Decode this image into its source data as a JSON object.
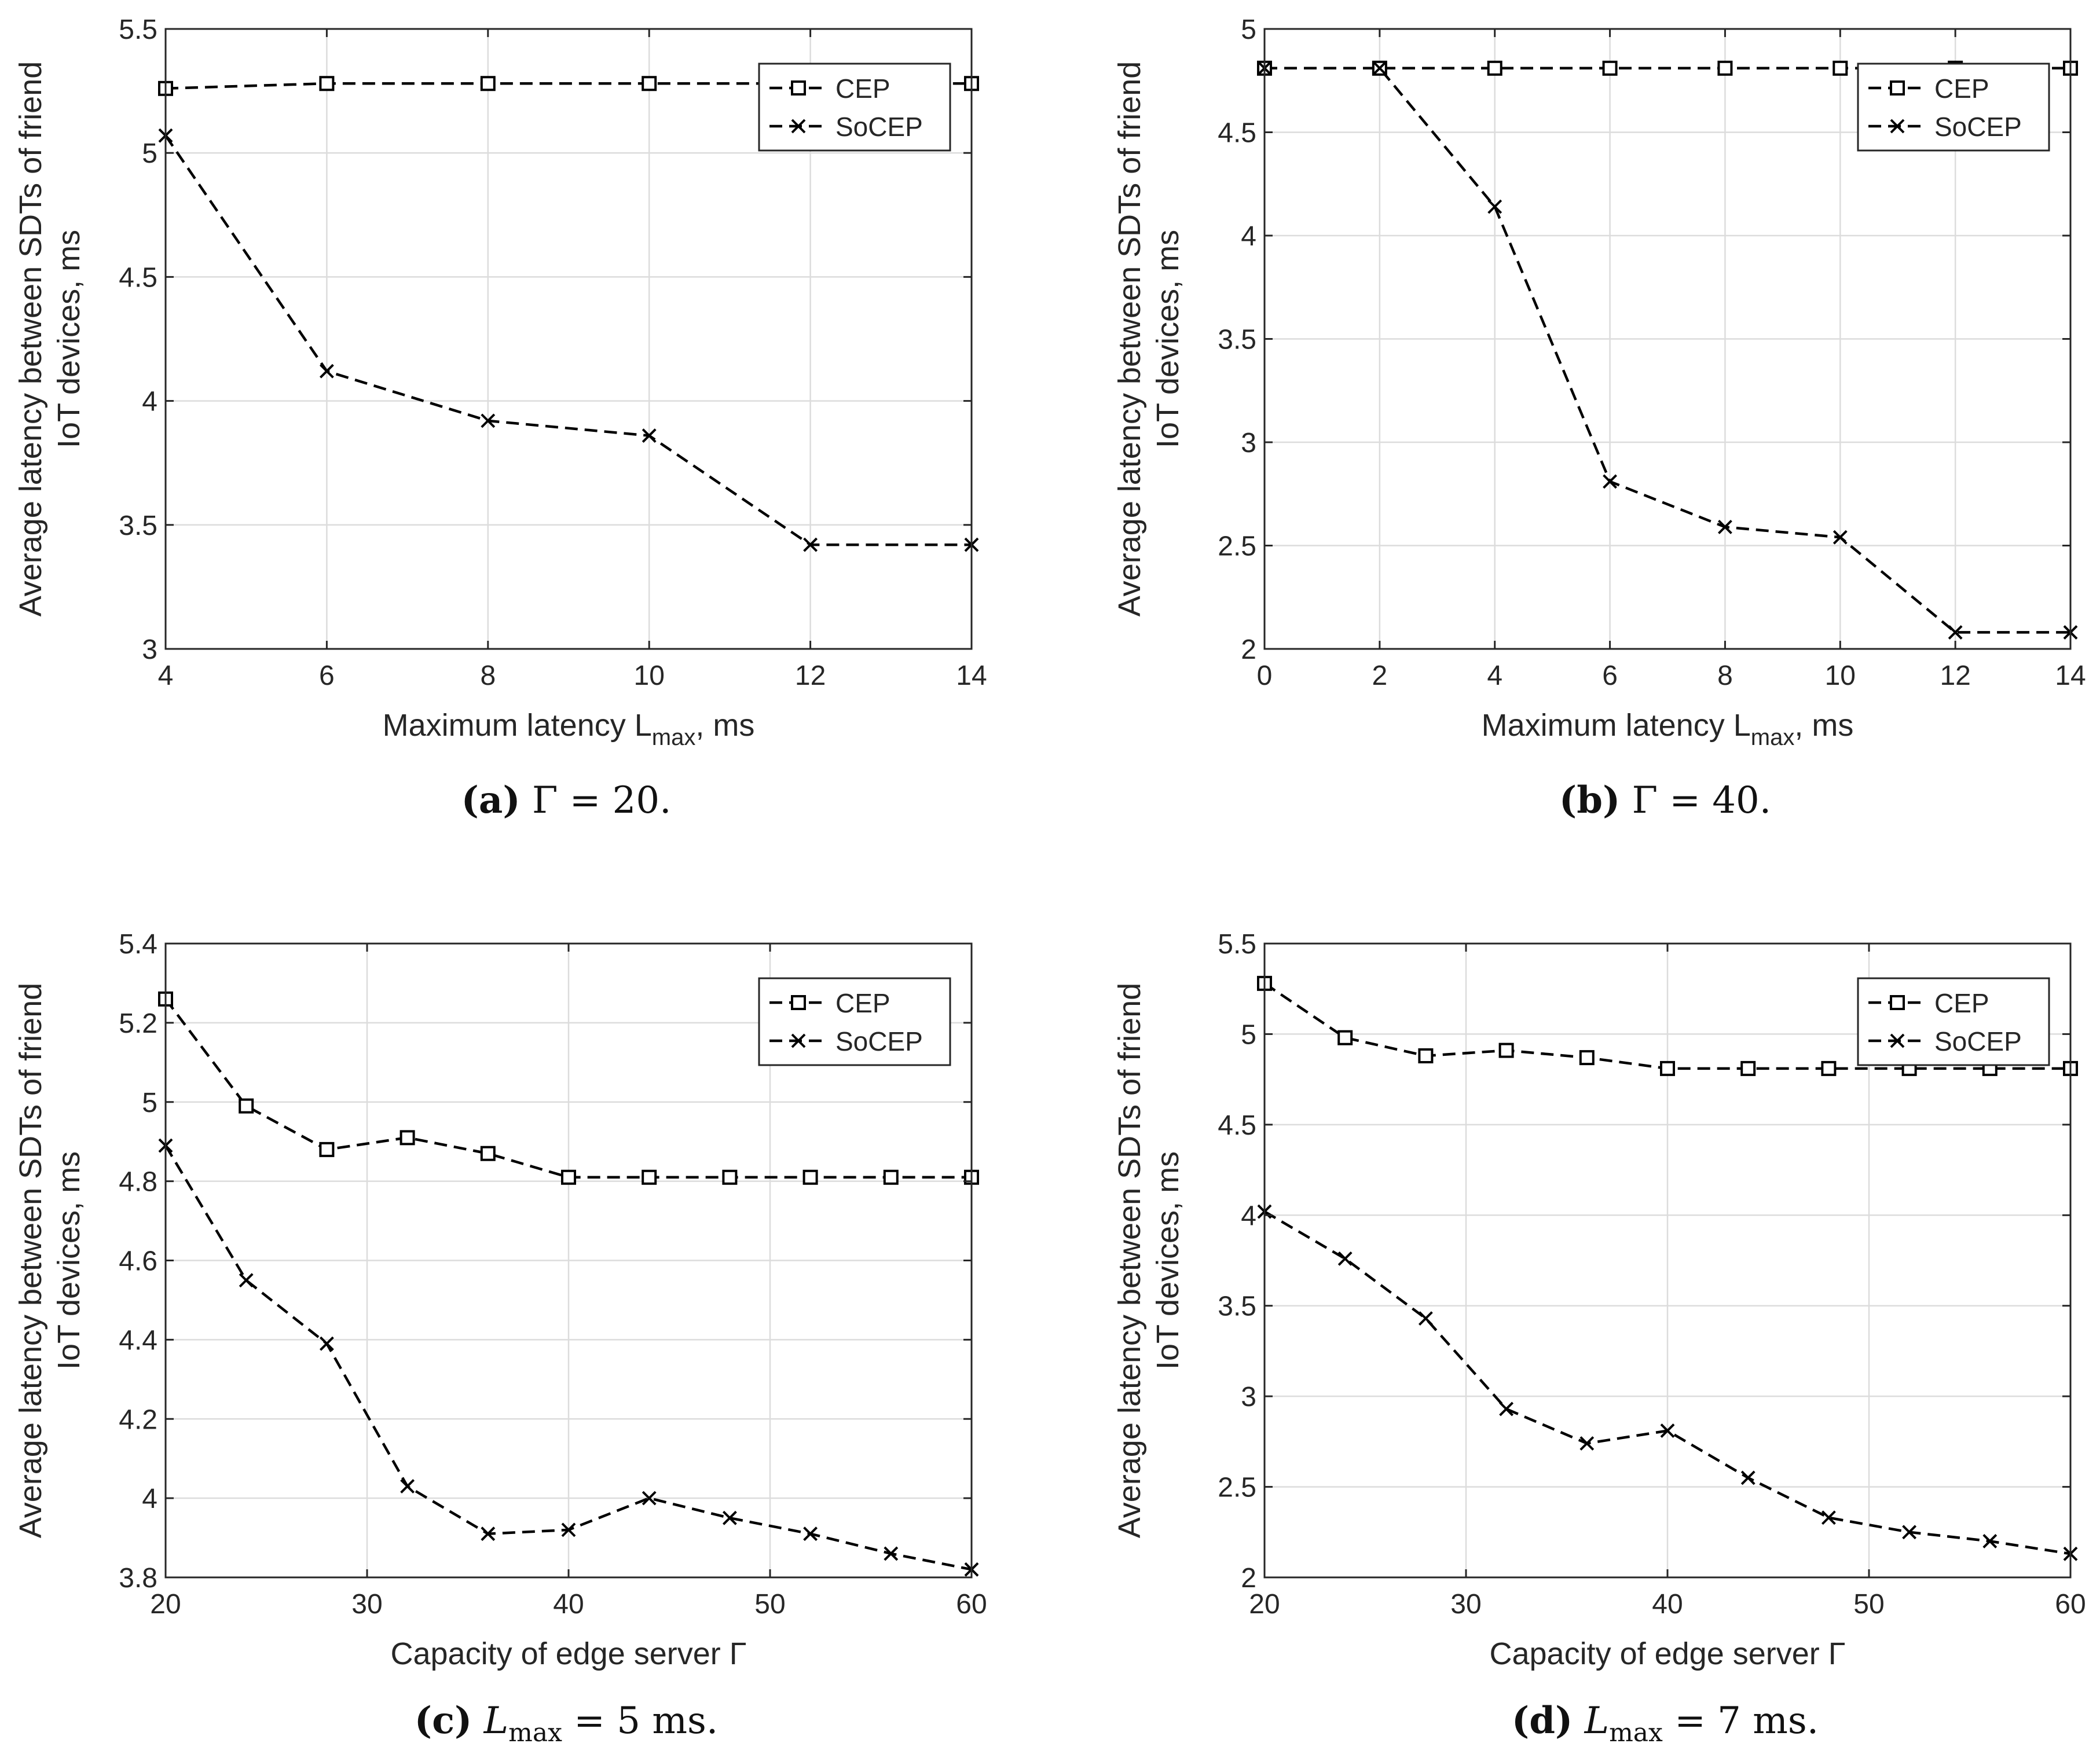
{
  "figure": {
    "captions": [
      {
        "label": "(a)",
        "text": "Γ = 20."
      },
      {
        "label": "(b)",
        "text": "Γ = 40."
      },
      {
        "label": "(c)",
        "math": "L",
        "sub": "max",
        "text": " = 5 ms."
      },
      {
        "label": "(d)",
        "math": "L",
        "sub": "max",
        "text": " = 7 ms."
      }
    ]
  },
  "chart_data": [
    {
      "id": "a",
      "type": "line",
      "title": "",
      "xlabel": "Maximum latency L",
      "xlabel_sub": "max",
      "xlabel_suffix": ", ms",
      "ylabel": [
        "Average latency between SDTs of friend",
        "IoT devices, ms"
      ],
      "xlim": [
        4,
        14
      ],
      "ylim": [
        3,
        5.5
      ],
      "xticks": [
        4,
        6,
        8,
        10,
        12,
        14
      ],
      "yticks": [
        3,
        3.5,
        4,
        4.5,
        5,
        5.5
      ],
      "ytick_labels": [
        "3",
        "3.5",
        "4",
        "4.5",
        "5",
        "5.5"
      ],
      "grid": true,
      "legend": "top-right",
      "x": [
        4,
        6,
        8,
        10,
        12,
        14
      ],
      "series": [
        {
          "name": "CEP",
          "marker": "square",
          "values": [
            5.26,
            5.28,
            5.28,
            5.28,
            5.28,
            5.28
          ]
        },
        {
          "name": "SoCEP",
          "marker": "x",
          "values": [
            5.07,
            4.12,
            3.92,
            3.86,
            3.42,
            3.42
          ]
        }
      ]
    },
    {
      "id": "b",
      "type": "line",
      "title": "",
      "xlabel": "Maximum latency L",
      "xlabel_sub": "max",
      "xlabel_suffix": ", ms",
      "ylabel": [
        "Average latency between SDTs of friend",
        "IoT devices, ms"
      ],
      "xlim": [
        0,
        14
      ],
      "ylim": [
        2,
        5
      ],
      "xticks": [
        0,
        2,
        4,
        6,
        8,
        10,
        12,
        14
      ],
      "yticks": [
        2,
        2.5,
        3,
        3.5,
        4,
        4.5,
        5
      ],
      "ytick_labels": [
        "2",
        "2.5",
        "3",
        "3.5",
        "4",
        "4.5",
        "5"
      ],
      "grid": true,
      "legend": "top-right",
      "x": [
        0,
        2,
        4,
        6,
        8,
        10,
        12,
        14
      ],
      "series": [
        {
          "name": "CEP",
          "marker": "square",
          "values": [
            4.81,
            4.81,
            4.81,
            4.81,
            4.81,
            4.81,
            4.81,
            4.81
          ]
        },
        {
          "name": "SoCEP",
          "marker": "x",
          "values": [
            4.81,
            4.81,
            4.14,
            2.81,
            2.59,
            2.54,
            2.08,
            2.08
          ]
        }
      ]
    },
    {
      "id": "c",
      "type": "line",
      "title": "",
      "xlabel": "Capacity of edge server Γ",
      "xlabel_sub": "",
      "xlabel_suffix": "",
      "ylabel": [
        "Average latency between SDTs of friend",
        "IoT devices, ms"
      ],
      "xlim": [
        20,
        60
      ],
      "ylim": [
        3.8,
        5.4
      ],
      "xticks": [
        20,
        30,
        40,
        50,
        60
      ],
      "yticks": [
        3.8,
        4,
        4.2,
        4.4,
        4.6,
        4.8,
        5,
        5.2,
        5.4
      ],
      "ytick_labels": [
        "3.8",
        "4",
        "4.2",
        "4.4",
        "4.6",
        "4.8",
        "5",
        "5.2",
        "5.4"
      ],
      "grid": true,
      "legend": "top-right",
      "x": [
        20,
        24,
        28,
        32,
        36,
        40,
        44,
        48,
        52,
        56,
        60
      ],
      "series": [
        {
          "name": "CEP",
          "marker": "square",
          "values": [
            5.26,
            4.99,
            4.88,
            4.91,
            4.87,
            4.81,
            4.81,
            4.81,
            4.81,
            4.81,
            4.81
          ]
        },
        {
          "name": "SoCEP",
          "marker": "x",
          "values": [
            4.89,
            4.55,
            4.39,
            4.03,
            3.91,
            3.92,
            4.0,
            3.95,
            3.91,
            3.86,
            3.82
          ]
        }
      ]
    },
    {
      "id": "d",
      "type": "line",
      "title": "",
      "xlabel": "Capacity of edge server Γ",
      "xlabel_sub": "",
      "xlabel_suffix": "",
      "ylabel": [
        "Average latency between SDTs of friend",
        "IoT devices, ms"
      ],
      "xlim": [
        20,
        60
      ],
      "ylim": [
        2,
        5.5
      ],
      "xticks": [
        20,
        30,
        40,
        50,
        60
      ],
      "yticks": [
        2,
        2.5,
        3,
        3.5,
        4,
        4.5,
        5,
        5.5
      ],
      "ytick_labels": [
        "2",
        "2.5",
        "3",
        "3.5",
        "4",
        "4.5",
        "5",
        "5.5"
      ],
      "grid": true,
      "legend": "top-right",
      "x": [
        20,
        24,
        28,
        32,
        36,
        40,
        44,
        48,
        52,
        56,
        60
      ],
      "series": [
        {
          "name": "CEP",
          "marker": "square",
          "values": [
            5.28,
            4.98,
            4.88,
            4.91,
            4.87,
            4.81,
            4.81,
            4.81,
            4.81,
            4.81,
            4.81
          ]
        },
        {
          "name": "SoCEP",
          "marker": "x",
          "values": [
            4.02,
            3.76,
            3.43,
            2.93,
            2.74,
            2.81,
            2.55,
            2.33,
            2.25,
            2.2,
            2.13
          ]
        }
      ]
    }
  ]
}
